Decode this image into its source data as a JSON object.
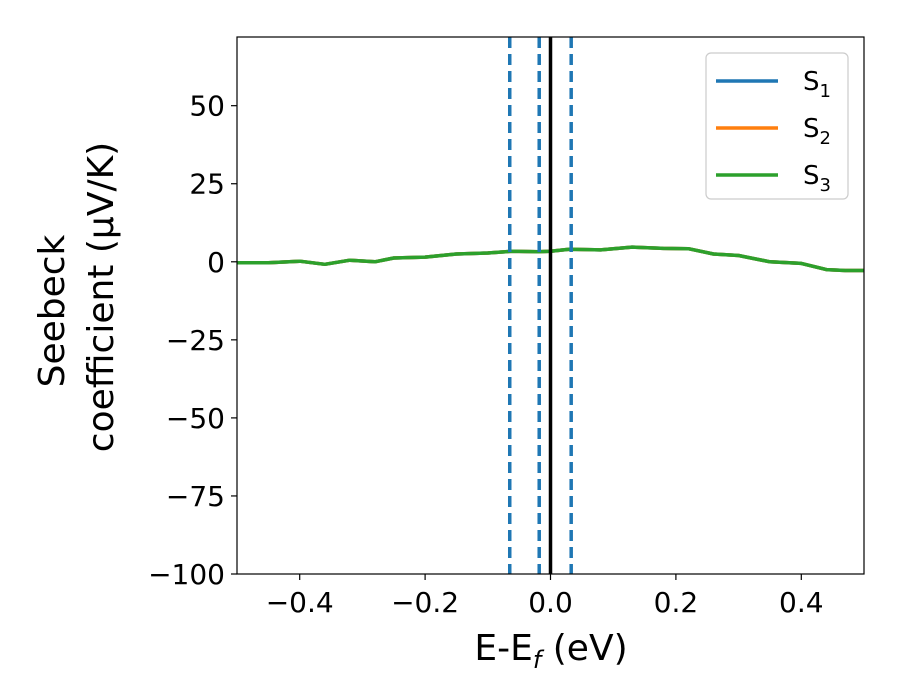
{
  "chart_data": {
    "type": "line",
    "xlabel": {
      "main": "E-E",
      "sub": "f",
      "suffix": " (eV)"
    },
    "ylabel": {
      "line1": "Seebeck",
      "line2": "coefficient  (μV/K)"
    },
    "xlim": [
      -0.5,
      0.5
    ],
    "ylim": [
      -100,
      72
    ],
    "xticks": [
      -0.4,
      -0.2,
      0.0,
      0.2,
      0.4
    ],
    "xtick_labels": [
      "−0.4",
      "−0.2",
      "0.0",
      "0.2",
      "0.4"
    ],
    "yticks": [
      50,
      25,
      0,
      -25,
      -50,
      -75,
      -100
    ],
    "ytick_labels": [
      "50",
      "25",
      "0",
      "−25",
      "−50",
      "−75",
      "−100"
    ],
    "grid": false,
    "legend_position": "top-right",
    "series": [
      {
        "name": "S",
        "sub": "1",
        "color": "#1f77b4",
        "x": [
          -0.5,
          -0.45,
          -0.4,
          -0.36,
          -0.32,
          -0.28,
          -0.25,
          -0.2,
          -0.15,
          -0.1,
          -0.06,
          -0.02,
          0.0,
          0.03,
          0.08,
          0.13,
          0.18,
          0.22,
          0.26,
          0.3,
          0.35,
          0.4,
          0.44,
          0.47,
          0.5
        ],
        "y": [
          -0.3,
          -0.3,
          0.2,
          -0.8,
          0.5,
          0.0,
          1.2,
          1.5,
          2.5,
          2.8,
          3.4,
          3.2,
          3.4,
          4.0,
          3.8,
          4.7,
          4.3,
          4.2,
          2.5,
          2.0,
          0.0,
          -0.5,
          -2.5,
          -2.8,
          -2.8
        ]
      },
      {
        "name": "S",
        "sub": "2",
        "color": "#ff7f0e",
        "x": [
          -0.5,
          -0.45,
          -0.4,
          -0.36,
          -0.32,
          -0.28,
          -0.25,
          -0.2,
          -0.15,
          -0.1,
          -0.06,
          -0.02,
          0.0,
          0.03,
          0.08,
          0.13,
          0.18,
          0.22,
          0.26,
          0.3,
          0.35,
          0.4,
          0.44,
          0.47,
          0.5
        ],
        "y": [
          -0.3,
          -0.3,
          0.2,
          -0.8,
          0.5,
          0.0,
          1.2,
          1.5,
          2.5,
          2.8,
          3.4,
          3.2,
          3.4,
          4.0,
          3.8,
          4.7,
          4.3,
          4.2,
          2.5,
          2.0,
          0.0,
          -0.5,
          -2.5,
          -2.8,
          -2.8
        ]
      },
      {
        "name": "S",
        "sub": "3",
        "color": "#2ca02c",
        "x": [
          -0.5,
          -0.45,
          -0.4,
          -0.36,
          -0.32,
          -0.28,
          -0.25,
          -0.2,
          -0.15,
          -0.1,
          -0.06,
          -0.02,
          0.0,
          0.03,
          0.08,
          0.13,
          0.18,
          0.22,
          0.26,
          0.3,
          0.35,
          0.4,
          0.44,
          0.47,
          0.5
        ],
        "y": [
          -0.3,
          -0.3,
          0.2,
          -0.8,
          0.5,
          0.0,
          1.2,
          1.5,
          2.5,
          2.8,
          3.4,
          3.2,
          3.4,
          4.0,
          3.8,
          4.7,
          4.3,
          4.2,
          2.5,
          2.0,
          0.0,
          -0.5,
          -2.5,
          -2.8,
          -2.8
        ]
      }
    ],
    "vlines": [
      {
        "x": -0.065,
        "style": "dashed",
        "color": "#1f77b4"
      },
      {
        "x": -0.018,
        "style": "dashed",
        "color": "#1f77b4"
      },
      {
        "x": 0.0,
        "style": "solid",
        "color": "#000000"
      },
      {
        "x": 0.033,
        "style": "dashed",
        "color": "#1f77b4"
      }
    ]
  }
}
